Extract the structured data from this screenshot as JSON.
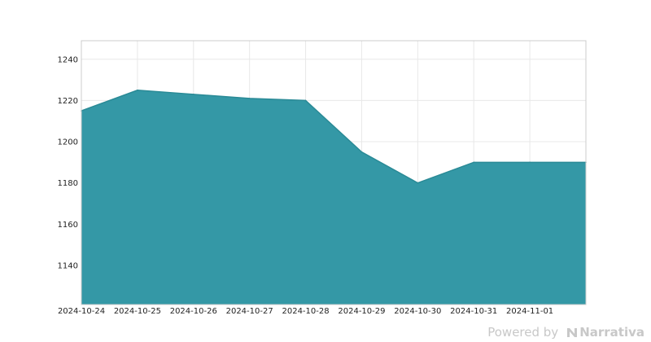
{
  "chart_data": {
    "type": "area",
    "x": [
      "2024-10-24",
      "2024-10-25",
      "2024-10-26",
      "2024-10-27",
      "2024-10-28",
      "2024-10-29",
      "2024-10-30",
      "2024-10-31",
      "2024-11-01",
      "2024-11-02"
    ],
    "x_tick_labels": [
      "2024-10-24",
      "2024-10-25",
      "2024-10-26",
      "2024-10-27",
      "2024-10-28",
      "2024-10-29",
      "2024-10-30",
      "2024-10-31",
      "2024-11-01"
    ],
    "series": [
      {
        "values": [
          1215,
          1225,
          1223,
          1221,
          1220,
          1195,
          1180,
          1190,
          1190,
          1190
        ]
      }
    ],
    "ylim": [
      1121,
      1249
    ],
    "y_ticks": [
      1140,
      1160,
      1180,
      1200,
      1220,
      1240
    ],
    "grid": true,
    "fill_color": "#3498a6",
    "line_color": "#2a8a96",
    "title": "",
    "xlabel": "",
    "ylabel": ""
  },
  "watermark": {
    "powered_by": "Powered by",
    "brand": "Narrativa"
  }
}
